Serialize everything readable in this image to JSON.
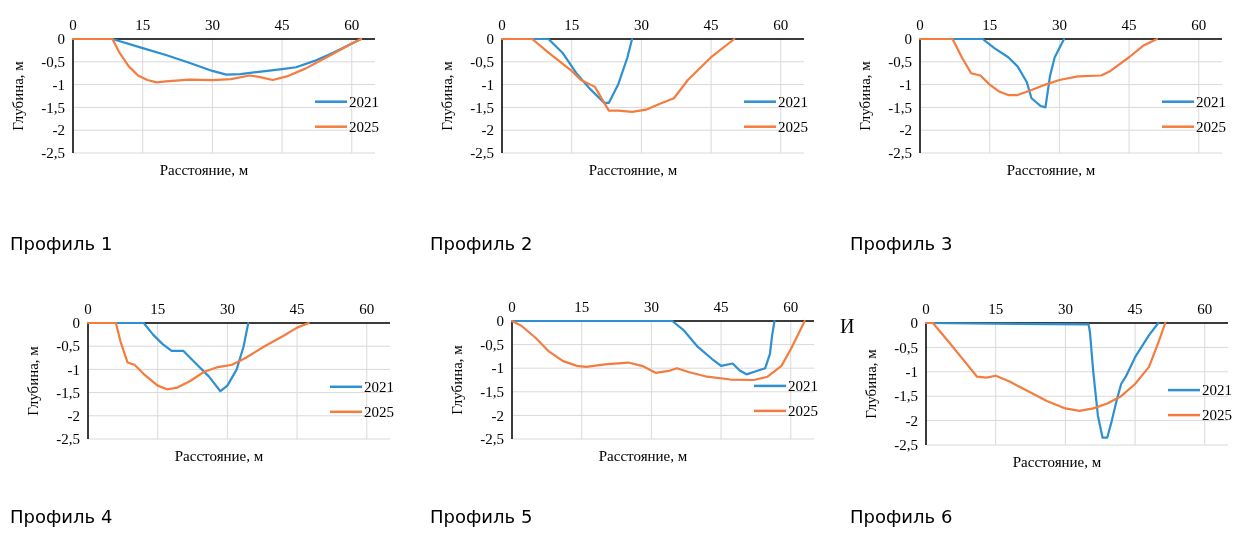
{
  "chart_data": [
    {
      "type": "line",
      "title": "Профиль 1",
      "xlabel": "Расстояние, м",
      "ylabel": "Глубина, м",
      "xlim": [
        0,
        65
      ],
      "xticks": [
        0,
        15,
        30,
        45,
        60
      ],
      "ylim": [
        -2.5,
        0
      ],
      "yticks": [
        0,
        {
          "value": -0.5,
          "label": "-0,5"
        },
        -1,
        {
          "value": -1.5,
          "label": "-1,5"
        },
        -2,
        {
          "value": -2.5,
          "label": "-2,5"
        }
      ],
      "grid": true,
      "legend": "right",
      "series": [
        {
          "name": "2021",
          "color": "#2e8fd1",
          "x": [
            0,
            8.5,
            15,
            20,
            25,
            30,
            33,
            36,
            40,
            45,
            48,
            52,
            56,
            62
          ],
          "values": [
            0,
            0,
            -0.2,
            -0.35,
            -0.52,
            -0.7,
            -0.78,
            -0.77,
            -0.72,
            -0.66,
            -0.62,
            -0.48,
            -0.3,
            0
          ]
        },
        {
          "name": "2025",
          "color": "#f47c3f",
          "x": [
            0,
            8.5,
            10,
            12,
            14,
            16,
            18,
            20,
            25,
            30,
            34,
            38,
            40,
            43,
            46,
            50,
            55,
            60,
            62
          ],
          "values": [
            0,
            0,
            -0.3,
            -0.6,
            -0.8,
            -0.9,
            -0.95,
            -0.93,
            -0.89,
            -0.9,
            -0.88,
            -0.8,
            -0.83,
            -0.9,
            -0.82,
            -0.65,
            -0.38,
            -0.1,
            0
          ]
        }
      ]
    },
    {
      "type": "line",
      "title": "Профиль 2",
      "xlabel": "Расстояние, м",
      "ylabel": "Глубина, м",
      "xlim": [
        0,
        65
      ],
      "xticks": [
        0,
        15,
        30,
        45,
        60
      ],
      "ylim": [
        -2.5,
        0
      ],
      "yticks": [
        0,
        {
          "value": -0.5,
          "label": "-0,5"
        },
        -1,
        {
          "value": -1.5,
          "label": "-1,5"
        },
        -2,
        {
          "value": -2.5,
          "label": "-2,5"
        }
      ],
      "grid": true,
      "legend": "right",
      "series": [
        {
          "name": "2021",
          "color": "#2e8fd1",
          "x": [
            0,
            10,
            13,
            16,
            19,
            22,
            23,
            25,
            27,
            28
          ],
          "values": [
            0,
            0,
            -0.3,
            -0.75,
            -1.1,
            -1.4,
            -1.4,
            -1.0,
            -0.4,
            0
          ]
        },
        {
          "name": "2025",
          "color": "#f47c3f",
          "x": [
            0,
            6.5,
            10,
            15,
            17,
            20,
            22,
            23,
            25,
            28,
            31,
            34,
            37,
            40,
            45,
            50
          ],
          "values": [
            0,
            0,
            -0.3,
            -0.7,
            -0.9,
            -1.05,
            -1.4,
            -1.57,
            -1.57,
            -1.6,
            -1.55,
            -1.42,
            -1.3,
            -0.9,
            -0.4,
            0
          ]
        }
      ]
    },
    {
      "type": "line",
      "title": "Профиль 3",
      "xlabel": "Расстояние, м",
      "ylabel": "Глубина, м",
      "xlim": [
        0,
        65
      ],
      "xticks": [
        0,
        15,
        30,
        45,
        60
      ],
      "ylim": [
        -2.5,
        0
      ],
      "yticks": [
        0,
        {
          "value": -0.5,
          "label": "-0,5"
        },
        -1,
        {
          "value": -1.5,
          "label": "-1,5"
        },
        -2,
        {
          "value": -2.5,
          "label": "-2,5"
        }
      ],
      "grid": true,
      "legend": "right",
      "series": [
        {
          "name": "2021",
          "color": "#2e8fd1",
          "x": [
            0,
            13.5,
            16,
            19,
            21,
            23,
            24,
            26,
            27,
            28,
            29,
            31
          ],
          "values": [
            0,
            0,
            -0.2,
            -0.4,
            -0.6,
            -0.95,
            -1.3,
            -1.47,
            -1.5,
            -0.8,
            -0.4,
            0
          ]
        },
        {
          "name": "2025",
          "color": "#f47c3f",
          "x": [
            0,
            7,
            9,
            11,
            13,
            15,
            17,
            19,
            21,
            24,
            27,
            30,
            34,
            39,
            41,
            45,
            48,
            51
          ],
          "values": [
            0,
            0,
            -0.4,
            -0.75,
            -0.8,
            -1.0,
            -1.15,
            -1.23,
            -1.23,
            -1.12,
            -1.0,
            -0.9,
            -0.82,
            -0.8,
            -0.7,
            -0.4,
            -0.15,
            0
          ]
        }
      ]
    },
    {
      "type": "line",
      "title": "Профиль 4",
      "xlabel": "Расстояние, м",
      "ylabel": "Глубина, м",
      "xlim": [
        0,
        65
      ],
      "xticks": [
        0,
        15,
        30,
        45,
        60
      ],
      "ylim": [
        -2.5,
        0
      ],
      "yticks": [
        0,
        {
          "value": -0.5,
          "label": "-0,5"
        },
        -1,
        {
          "value": -1.5,
          "label": "-1,5"
        },
        -2,
        {
          "value": -2.5,
          "label": "-2,5"
        }
      ],
      "grid": true,
      "legend": "right",
      "series": [
        {
          "name": "2021",
          "color": "#2e8fd1",
          "x": [
            0,
            12,
            14,
            16,
            18,
            20.5,
            23,
            26,
            28.5,
            30,
            32,
            33.5,
            34.5
          ],
          "values": [
            0,
            0,
            -0.25,
            -0.45,
            -0.6,
            -0.6,
            -0.85,
            -1.15,
            -1.47,
            -1.35,
            -1.0,
            -0.5,
            0
          ]
        },
        {
          "name": "2025",
          "color": "#f47c3f",
          "x": [
            0,
            6,
            7,
            8.5,
            10,
            12,
            15,
            17,
            19,
            22,
            25,
            28,
            31,
            34,
            38,
            42,
            45,
            47.5
          ],
          "values": [
            0,
            0,
            -0.4,
            -0.85,
            -0.9,
            -1.1,
            -1.35,
            -1.43,
            -1.4,
            -1.25,
            -1.05,
            -0.95,
            -0.9,
            -0.75,
            -0.5,
            -0.28,
            -0.1,
            0
          ]
        }
      ]
    },
    {
      "type": "line",
      "title": "Профиль 5",
      "xlabel": "Расстояние, м",
      "ylabel": "Глубина, м",
      "xlim": [
        0,
        65
      ],
      "xticks": [
        0,
        15,
        30,
        45,
        60
      ],
      "ylim": [
        -2.5,
        0
      ],
      "yticks": [
        0,
        {
          "value": -0.5,
          "label": "-0,5"
        },
        -1,
        {
          "value": -1.5,
          "label": "-1,5"
        },
        -2,
        {
          "value": -2.5,
          "label": "-2,5"
        }
      ],
      "grid": true,
      "legend": "right",
      "series": [
        {
          "name": "2021",
          "color": "#2e8fd1",
          "x": [
            0,
            34.5,
            37,
            40,
            43,
            45,
            47.5,
            49,
            50.5,
            53,
            54.5,
            55.5,
            56,
            56.5
          ],
          "values": [
            0,
            0,
            -0.2,
            -0.55,
            -0.8,
            -0.95,
            -0.9,
            -1.05,
            -1.13,
            -1.05,
            -1.0,
            -0.7,
            -0.3,
            0
          ]
        },
        {
          "name": "2025",
          "color": "#f47c3f",
          "x": [
            0,
            2,
            5,
            8,
            11,
            14,
            16,
            20,
            25,
            28,
            31,
            34,
            35.5,
            38,
            42,
            47,
            52,
            55,
            58,
            60,
            62,
            63
          ],
          "values": [
            0,
            -0.1,
            -0.35,
            -0.65,
            -0.85,
            -0.95,
            -0.97,
            -0.92,
            -0.88,
            -0.95,
            -1.1,
            -1.05,
            -1.0,
            -1.08,
            -1.18,
            -1.24,
            -1.25,
            -1.18,
            -0.95,
            -0.6,
            -0.2,
            0
          ]
        }
      ]
    },
    {
      "type": "line",
      "title": "Профиль 6",
      "xlabel": "Расстояние, м",
      "ylabel": "Глубина, м",
      "xlim": [
        0,
        65
      ],
      "xticks": [
        0,
        15,
        30,
        45,
        60
      ],
      "ylim": [
        -2.5,
        0
      ],
      "yticks": [
        0,
        {
          "value": -0.5,
          "label": "-0,5"
        },
        -1,
        {
          "value": -1.5,
          "label": "-1,5"
        },
        -2,
        {
          "value": -2.5,
          "label": "-2,5"
        }
      ],
      "grid": true,
      "legend": "right",
      "annotations": [
        "И"
      ],
      "series": [
        {
          "name": "2021",
          "color": "#2e8fd1",
          "x": [
            0,
            35,
            35.3,
            36,
            37,
            38,
            39,
            40,
            41,
            42,
            43,
            45,
            48,
            50
          ],
          "values": [
            0,
            -0.03,
            -0.2,
            -1.0,
            -1.9,
            -2.35,
            -2.35,
            -2.0,
            -1.6,
            -1.25,
            -1.1,
            -0.7,
            -0.25,
            0
          ]
        },
        {
          "name": "2025",
          "color": "#f47c3f",
          "x": [
            0,
            1.5,
            5,
            8,
            11,
            13,
            15,
            18,
            22,
            26,
            30,
            33,
            36,
            39,
            42,
            45,
            48,
            50,
            51.5
          ],
          "values": [
            0,
            0,
            -0.4,
            -0.75,
            -1.1,
            -1.12,
            -1.08,
            -1.2,
            -1.4,
            -1.6,
            -1.75,
            -1.8,
            -1.75,
            -1.65,
            -1.5,
            -1.25,
            -0.9,
            -0.4,
            0
          ]
        }
      ]
    }
  ]
}
